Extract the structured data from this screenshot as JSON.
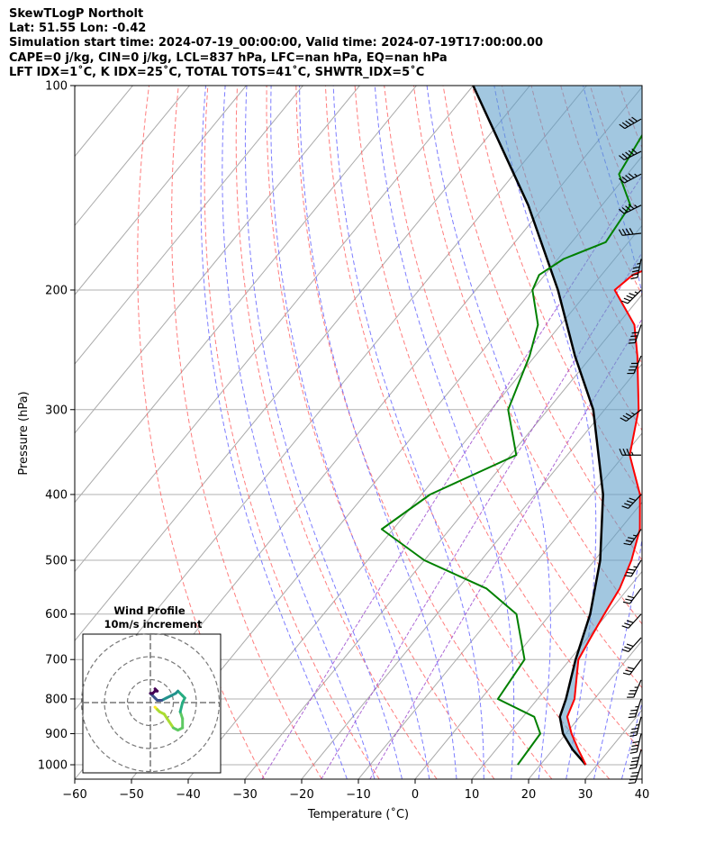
{
  "header": {
    "line1": "SkewTLogP Northolt",
    "line2": "Lat: 51.55   Lon: -0.42",
    "line3": "Simulation start time: 2024-07-19_00:00:00, Valid time: 2024-07-19T17:00:00.00",
    "line4": "CAPE=0 j/kg, CIN=0 j/kg, LCL=837 hPa, LFC=nan hPa, EQ=nan hPa",
    "line5": "LFT IDX=1˚C, K IDX=25˚C, TOTAL TOTS=41˚C, SHWTR_IDX=5˚C"
  },
  "chart_data": {
    "type": "line",
    "subtype": "skew-T log-P",
    "xlabel": "Temperature (˚C)",
    "ylabel": "Pressure (hPa)",
    "xlim": [
      -60,
      40
    ],
    "ylim": [
      1050,
      100
    ],
    "x_ticks": [
      "−60",
      "−50",
      "−40",
      "−30",
      "−20",
      "−10",
      "0",
      "10",
      "20",
      "30",
      "40"
    ],
    "y_ticks": [
      "100",
      "200",
      "300",
      "400",
      "500",
      "600",
      "700",
      "800",
      "900",
      "1000"
    ],
    "y_scale": "log",
    "grid": true,
    "colors": {
      "temperature": "#ff0000",
      "dewpoint": "#008000",
      "parcel": "#000000",
      "dry_adiabats": "#ff6666",
      "moist_adiabats": "#6666ff",
      "mixing_ratio": "#9944cc",
      "cape_fill": "#5f9ec9",
      "isotherms": "#aaaaaa"
    },
    "series": [
      {
        "key": "temperature",
        "points": [
          [
            1000,
            28
          ],
          [
            950,
            24.5
          ],
          [
            900,
            21
          ],
          [
            850,
            17.8
          ],
          [
            800,
            16.5
          ],
          [
            700,
            11.5
          ],
          [
            650,
            10.5
          ],
          [
            600,
            9.5
          ],
          [
            550,
            8.5
          ],
          [
            500,
            6.5
          ],
          [
            450,
            3.5
          ],
          [
            400,
            -1.5
          ],
          [
            350,
            -9
          ],
          [
            300,
            -14
          ],
          [
            250,
            -22
          ],
          [
            225,
            -27
          ],
          [
            200,
            -35.5
          ],
          [
            190,
            -34.5
          ],
          [
            180,
            -30
          ],
          [
            170,
            -23.5
          ],
          [
            160,
            -17.5
          ],
          [
            150,
            -13
          ],
          [
            140,
            -11
          ],
          [
            120,
            -10.5
          ],
          [
            100,
            -10
          ]
        ]
      },
      {
        "key": "dewpoint",
        "points": [
          [
            1000,
            16
          ],
          [
            900,
            15.5
          ],
          [
            850,
            12
          ],
          [
            800,
            3
          ],
          [
            700,
            2
          ],
          [
            600,
            -6
          ],
          [
            550,
            -15
          ],
          [
            500,
            -30
          ],
          [
            450,
            -42
          ],
          [
            400,
            -38.5
          ],
          [
            350,
            -29
          ],
          [
            300,
            -37
          ],
          [
            250,
            -41
          ],
          [
            225,
            -44
          ],
          [
            200,
            -50
          ],
          [
            190,
            -51
          ],
          [
            180,
            -49
          ],
          [
            170,
            -44
          ],
          [
            150,
            -45
          ],
          [
            135,
            -51.5
          ],
          [
            100,
            -55
          ]
        ]
      },
      {
        "key": "parcel",
        "points": [
          [
            1000,
            28
          ],
          [
            950,
            23.5
          ],
          [
            900,
            19.5
          ],
          [
            850,
            16.5
          ],
          [
            800,
            15
          ],
          [
            700,
            11
          ],
          [
            600,
            7
          ],
          [
            500,
            1
          ],
          [
            400,
            -8
          ],
          [
            300,
            -22
          ],
          [
            250,
            -33
          ],
          [
            200,
            -45.5
          ],
          [
            150,
            -63
          ],
          [
            100,
            -90
          ]
        ]
      }
    ],
    "hodograph": {
      "title": "Wind Profile",
      "subtitle": "10m/s increment",
      "ring_step_ms": 10,
      "range_ms": 30,
      "points_uv": [
        [
          2,
          -2
        ],
        [
          3,
          -3
        ],
        [
          4,
          -4
        ],
        [
          6,
          -5
        ],
        [
          8,
          -8
        ],
        [
          10,
          -11
        ],
        [
          12,
          -12
        ],
        [
          14,
          -11
        ],
        [
          14,
          -7
        ],
        [
          13,
          -4
        ],
        [
          14,
          0
        ],
        [
          15,
          2
        ],
        [
          14,
          3
        ],
        [
          12,
          5
        ],
        [
          11,
          4
        ],
        [
          9,
          3
        ],
        [
          7,
          2
        ],
        [
          5,
          1
        ],
        [
          3,
          1
        ],
        [
          2,
          2
        ],
        [
          1,
          3
        ],
        [
          0,
          4
        ],
        [
          1,
          4
        ],
        [
          2,
          5
        ],
        [
          3,
          5
        ],
        [
          2,
          6
        ]
      ]
    },
    "wind_barbs": [
      {
        "p": 1000,
        "u": -6,
        "v": -18
      },
      {
        "p": 950,
        "u": -5,
        "v": -18
      },
      {
        "p": 900,
        "u": -4,
        "v": -17
      },
      {
        "p": 850,
        "u": -4,
        "v": -16
      },
      {
        "p": 800,
        "u": -5,
        "v": -15
      },
      {
        "p": 750,
        "u": -6,
        "v": -14
      },
      {
        "p": 700,
        "u": -9,
        "v": -12
      },
      {
        "p": 650,
        "u": -10,
        "v": -11
      },
      {
        "p": 600,
        "u": -10,
        "v": -11
      },
      {
        "p": 550,
        "u": -9,
        "v": -12
      },
      {
        "p": 500,
        "u": -8,
        "v": -13
      },
      {
        "p": 450,
        "u": -9,
        "v": -13
      },
      {
        "p": 400,
        "u": -12,
        "v": -13
      },
      {
        "p": 350,
        "u": -16,
        "v": 0
      },
      {
        "p": 300,
        "u": -13,
        "v": -10
      },
      {
        "p": 250,
        "u": -7,
        "v": -17
      },
      {
        "p": 225,
        "u": -6,
        "v": -18
      },
      {
        "p": 200,
        "u": -14,
        "v": -14
      },
      {
        "p": 180,
        "u": -4,
        "v": -20
      },
      {
        "p": 165,
        "u": -18,
        "v": -2
      },
      {
        "p": 150,
        "u": -18,
        "v": -9
      },
      {
        "p": 135,
        "u": -19,
        "v": -10
      },
      {
        "p": 125,
        "u": -20,
        "v": -10
      },
      {
        "p": 112,
        "u": -19,
        "v": -11
      }
    ]
  }
}
